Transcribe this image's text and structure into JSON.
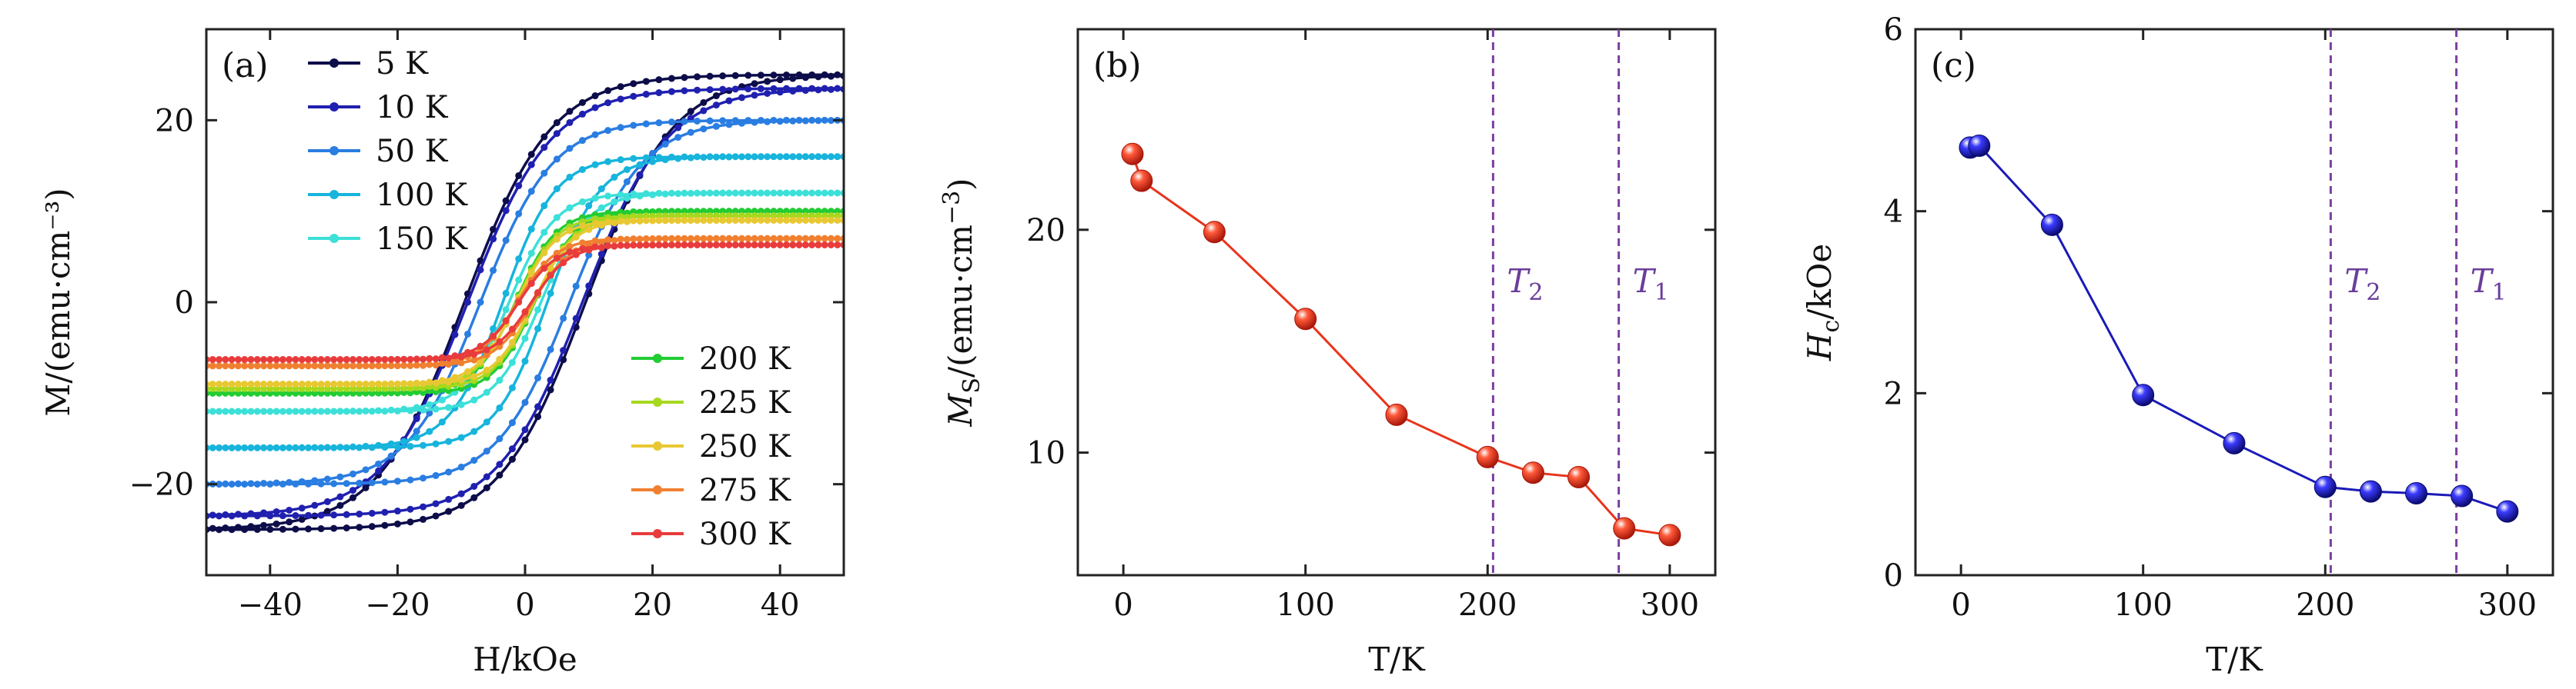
{
  "colors": {
    "ms_line": "#e8341c",
    "hc_line": "#1a1ab8",
    "vline": "#7b3fa0",
    "axis": "#222222"
  },
  "chart_data": [
    {
      "type": "line",
      "panel_label": "(a)",
      "title": "",
      "xlabel": "H/kOe",
      "ylabel": "M/(emu·cm⁻³)",
      "xlim": [
        -50,
        50
      ],
      "ylim": [
        -30,
        30
      ],
      "xticks": [
        -40,
        -20,
        0,
        20,
        40
      ],
      "xtick_labels": [
        "−40",
        "−20",
        "0",
        "20",
        "40"
      ],
      "yticks": [
        -20,
        0,
        20
      ],
      "ytick_labels": [
        "−20",
        "0",
        "20"
      ],
      "grid": false,
      "legend": [
        "top-left",
        "bottom-right"
      ],
      "series": [
        {
          "name": "5 K",
          "color": "#0d0d4a",
          "Ms": 25.0,
          "Hc": 9.5
        },
        {
          "name": "10 K",
          "color": "#2020b0",
          "Ms": 23.5,
          "Hc": 9.0
        },
        {
          "name": "50 K",
          "color": "#2a7de1",
          "Ms": 20.0,
          "Hc": 7.0
        },
        {
          "name": "100 K",
          "color": "#17b4dc",
          "Ms": 16.0,
          "Hc": 3.5
        },
        {
          "name": "150 K",
          "color": "#3ce0d8",
          "Ms": 12.0,
          "Hc": 2.5
        },
        {
          "name": "200 K",
          "color": "#22cc33",
          "Ms": 10.0,
          "Hc": 1.5
        },
        {
          "name": "225 K",
          "color": "#a6d81e",
          "Ms": 9.5,
          "Hc": 1.4
        },
        {
          "name": "250 K",
          "color": "#e8c832",
          "Ms": 9.0,
          "Hc": 1.3
        },
        {
          "name": "275 K",
          "color": "#f08030",
          "Ms": 7.0,
          "Hc": 1.2
        },
        {
          "name": "300 K",
          "color": "#e83c3c",
          "Ms": 6.3,
          "Hc": 1.0
        }
      ]
    },
    {
      "type": "line",
      "panel_label": "(b)",
      "title": "",
      "xlabel": "T/K",
      "ylabel": "MS/(emu·cm⁻³)",
      "xlim": [
        -25,
        325
      ],
      "ylim": [
        4.5,
        29
      ],
      "xticks": [
        0,
        100,
        200,
        300
      ],
      "xtick_labels": [
        "0",
        "100",
        "200",
        "300"
      ],
      "yticks": [
        10,
        20
      ],
      "ytick_labels": [
        "10",
        "20"
      ],
      "grid": false,
      "x": [
        5,
        10,
        50,
        100,
        150,
        200,
        225,
        250,
        275,
        300
      ],
      "y": [
        23.4,
        22.2,
        19.9,
        16.0,
        11.7,
        9.8,
        9.1,
        8.9,
        6.6,
        6.3
      ],
      "vlines": [
        {
          "x": 203,
          "label": "T2"
        },
        {
          "x": 272,
          "label": "T1"
        }
      ]
    },
    {
      "type": "line",
      "panel_label": "(c)",
      "title": "",
      "xlabel": "T/K",
      "ylabel": "Hc/kOe",
      "xlim": [
        -25,
        325
      ],
      "ylim": [
        0,
        6
      ],
      "xticks": [
        0,
        100,
        200,
        300
      ],
      "xtick_labels": [
        "0",
        "100",
        "200",
        "300"
      ],
      "yticks": [
        0,
        2,
        4,
        6
      ],
      "ytick_labels": [
        "0",
        "2",
        "4",
        "6"
      ],
      "grid": false,
      "x": [
        5,
        10,
        50,
        100,
        150,
        200,
        225,
        250,
        275,
        300
      ],
      "y": [
        4.7,
        4.72,
        3.85,
        1.98,
        1.45,
        0.97,
        0.92,
        0.9,
        0.87,
        0.7
      ],
      "vlines": [
        {
          "x": 203,
          "label": "T2"
        },
        {
          "x": 272,
          "label": "T1"
        }
      ]
    }
  ]
}
